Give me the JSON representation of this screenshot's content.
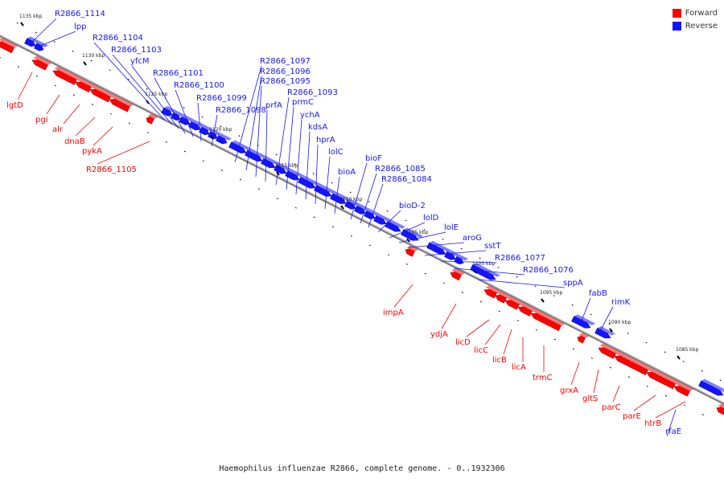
{
  "legend": {
    "forward_label": "Forward",
    "reverse_label": "Reverse",
    "forward_color": "#ff0000",
    "reverse_color": "#1414ff"
  },
  "caption": "Haemophilus influenzae R2866, complete genome. - 0..1932306",
  "ticks": [
    "1135 kbp",
    "1130 kbp",
    "1125 kbp",
    "1120 kbp",
    "1115 kbp",
    "1110 kbp",
    "1105 kbp",
    "1100 kbp",
    "1095 kbp",
    "1090 kbp",
    "1085 kbp"
  ],
  "forward_labels": [
    "lgtD",
    "pgi",
    "alr",
    "dnaB",
    "pykA",
    "R2866_1105",
    "impA",
    "ydjA",
    "licD",
    "licC",
    "licB",
    "licA",
    "trmC",
    "grxA",
    "gltS",
    "parC",
    "parE",
    "htrB"
  ],
  "reverse_labels": [
    "R2866_1114",
    "lpp",
    "R2866_1104",
    "R2866_1103",
    "yfcM",
    "R2866_1101",
    "R2866_1100",
    "R2866_1099",
    "R2866_1098",
    "R2866_1097",
    "R2866_1096",
    "R2866_1095",
    "prfA",
    "R2866_1093",
    "prmC",
    "ychA",
    "kdsA",
    "hprA",
    "lolC",
    "bioA",
    "bioF",
    "R2866_1085",
    "R2866_1084",
    "bioD-2",
    "lolD",
    "lolE",
    "aroG",
    "sstT",
    "R2866_1077",
    "R2866_1076",
    "sppA",
    "fabB",
    "rimK",
    "rfaE"
  ]
}
